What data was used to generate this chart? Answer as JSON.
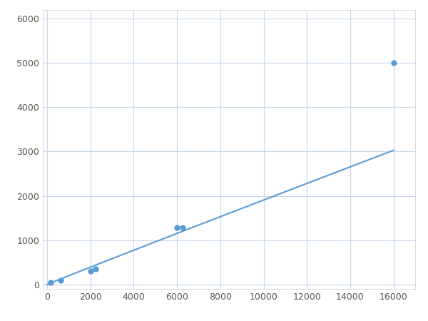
{
  "x": [
    0,
    156,
    313,
    625,
    1250,
    2500,
    6000,
    16000
  ],
  "y": [
    0,
    50,
    80,
    100,
    130,
    310,
    1280,
    5000
  ],
  "marker_x": [
    156,
    625,
    2000,
    2250,
    6000,
    6250,
    16000
  ],
  "marker_y": [
    50,
    100,
    300,
    350,
    1280,
    1290,
    5000
  ],
  "line_color": "#5b9bd5",
  "marker_color": "#5b9bd5",
  "marker_size": 5,
  "marker_style": "o",
  "xlim": [
    -200,
    17000
  ],
  "ylim": [
    -100,
    6200
  ],
  "xticks": [
    0,
    2000,
    4000,
    6000,
    8000,
    10000,
    12000,
    14000,
    16000
  ],
  "yticks": [
    0,
    1000,
    2000,
    3000,
    4000,
    5000,
    6000
  ],
  "grid": true,
  "background_color": "#ffffff",
  "spine_color": "#cccccc"
}
